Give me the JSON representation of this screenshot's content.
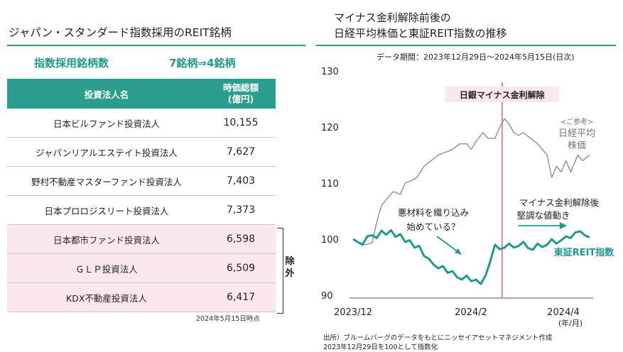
{
  "left": {
    "title": "ジャパン・スタンダード指数採用のREIT銘柄",
    "count_label": "指数採用銘柄数",
    "count_value": "7銘柄⇒4銘柄",
    "table": {
      "header_name": "投資法人名",
      "header_cap": "時価総額\n(億円)",
      "rows": [
        {
          "name": "日本ビルファンド投資法人",
          "cap": "10,155",
          "excluded": false
        },
        {
          "name": "ジャパンリアルエステイト投資法人",
          "cap": "7,627",
          "excluded": false
        },
        {
          "name": "野村不動産マスターファンド投資法人",
          "cap": "7,403",
          "excluded": false
        },
        {
          "name": "日本プロロジスリート投資法人",
          "cap": "7,373",
          "excluded": false
        },
        {
          "name": "日本都市ファンド投資法人",
          "cap": "6,598",
          "excluded": true
        },
        {
          "name": "ＧＬＰ投資法人",
          "cap": "6,509",
          "excluded": true
        },
        {
          "name": "KDX不動産投資法人",
          "cap": "6,417",
          "excluded": true
        }
      ]
    },
    "excluded_label": "除外",
    "as_of": "2024年5月15日時点"
  },
  "chart_data": {
    "type": "line",
    "title_line1": "マイナス金利解除前後の",
    "title_line2": "日経平均株価と東証REIT指数の推移",
    "period": "データ期間：2023年12月29日～2024年5月15日(日次)",
    "ylim": [
      90,
      130
    ],
    "yticks": [
      "130",
      "120",
      "110",
      "100",
      "90"
    ],
    "xticks": [
      "2023/12",
      "2024/2",
      "2024/4"
    ],
    "xunit": "(年/月)",
    "event_label": "日銀マイナス金利解除",
    "event_x": 0.63,
    "nikkei_label_note": "<ご参考>",
    "nikkei_label_1": "日経平均",
    "nikkei_label_2": "株価",
    "reit_label": "東証REIT指数",
    "annotation_1_line1": "悪材料を織り込み",
    "annotation_1_line2": "始めている？",
    "annotation_2_line1": "マイナス金利解除後",
    "annotation_2_line2": "堅調な値動き",
    "colors": {
      "reit": "#1f9a8d",
      "nikkei": "#8c8c8c",
      "event": "#e07a8a",
      "event_label_bg": "#fbe8ef"
    },
    "series": [
      {
        "name": "日経平均株価",
        "x": [
          0,
          0.02,
          0.05,
          0.08,
          0.1,
          0.12,
          0.14,
          0.17,
          0.2,
          0.22,
          0.25,
          0.27,
          0.3,
          0.33,
          0.36,
          0.39,
          0.42,
          0.45,
          0.48,
          0.5,
          0.52,
          0.55,
          0.57,
          0.6,
          0.62,
          0.64,
          0.66,
          0.68,
          0.7,
          0.72,
          0.75,
          0.78,
          0.8,
          0.82,
          0.84,
          0.86,
          0.88,
          0.9,
          0.92,
          0.95,
          0.97,
          1.0
        ],
        "values": [
          100,
          99.5,
          99,
          99.3,
          103,
          106,
          107,
          108.5,
          108,
          110,
          110.5,
          111,
          113,
          114,
          115,
          115.5,
          116,
          117,
          117,
          116,
          117.5,
          119,
          118,
          118,
          120,
          121.5,
          120.5,
          119,
          118.5,
          119,
          118,
          117,
          116,
          115,
          111,
          113,
          112,
          114,
          112,
          115,
          114,
          115
        ]
      },
      {
        "name": "東証REIT指数",
        "x": [
          0,
          0.02,
          0.04,
          0.06,
          0.08,
          0.1,
          0.12,
          0.14,
          0.16,
          0.18,
          0.2,
          0.22,
          0.24,
          0.26,
          0.28,
          0.3,
          0.32,
          0.34,
          0.36,
          0.38,
          0.4,
          0.42,
          0.44,
          0.46,
          0.48,
          0.5,
          0.52,
          0.54,
          0.56,
          0.58,
          0.6,
          0.62,
          0.64,
          0.66,
          0.68,
          0.7,
          0.72,
          0.74,
          0.76,
          0.78,
          0.8,
          0.82,
          0.84,
          0.86,
          0.88,
          0.9,
          0.92,
          0.94,
          0.96,
          0.98,
          1.0
        ],
        "values": [
          100,
          99.5,
          99,
          100.5,
          100.7,
          100.2,
          101.5,
          100.8,
          101.6,
          100.4,
          100.9,
          99.5,
          99.8,
          98.5,
          98.8,
          97,
          96.5,
          95.5,
          94.8,
          95.2,
          94,
          94.3,
          93.2,
          92.8,
          93.5,
          92.5,
          92.8,
          92,
          93.5,
          96,
          99,
          98.2,
          98.5,
          99.2,
          98.5,
          98.8,
          99.5,
          98.4,
          98.1,
          99.2,
          98.6,
          99,
          100,
          99.2,
          99.8,
          100.5,
          100.2,
          101.2,
          101.4,
          100.7,
          100.3
        ]
      }
    ]
  }
}
